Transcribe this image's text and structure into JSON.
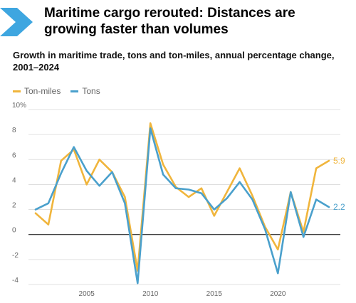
{
  "header": {
    "title": "Maritime cargo rerouted: Distances are growing faster than volumes",
    "subtitle": "Growth in maritime trade, tons and ton-miles, annual percentage change, 2001–2024",
    "chevron_icon": "chevron-right-icon",
    "accent_color": "#3ea6e0"
  },
  "chart_data": {
    "type": "line",
    "x": [
      2001,
      2002,
      2003,
      2004,
      2005,
      2006,
      2007,
      2008,
      2009,
      2010,
      2011,
      2012,
      2013,
      2014,
      2015,
      2016,
      2017,
      2018,
      2019,
      2020,
      2021,
      2022,
      2023,
      2024
    ],
    "series": [
      {
        "name": "Ton-miles",
        "color": "#f0b53c",
        "values": [
          1.7,
          0.8,
          5.9,
          6.8,
          4.0,
          6.0,
          5.0,
          3.0,
          -2.9,
          8.9,
          5.6,
          3.8,
          3.0,
          3.7,
          1.5,
          3.4,
          5.3,
          3.1,
          0.6,
          -1.2,
          3.4,
          0.2,
          5.3,
          5.9
        ]
      },
      {
        "name": "Tons",
        "color": "#4aa0cc",
        "values": [
          2.0,
          2.5,
          4.9,
          7.0,
          5.1,
          3.9,
          5.0,
          2.5,
          -3.9,
          8.5,
          4.8,
          3.7,
          3.6,
          3.3,
          2.0,
          2.9,
          4.2,
          2.8,
          0.4,
          -3.1,
          3.4,
          -0.2,
          2.8,
          2.2
        ]
      }
    ],
    "end_labels": [
      "5.9",
      "2.2"
    ],
    "ylim": [
      -4,
      10
    ],
    "y_ticks": [
      "-4",
      "-2",
      "0",
      "2",
      "4",
      "6",
      "8",
      "10%"
    ],
    "y_tick_values": [
      -4,
      -2,
      0,
      2,
      4,
      6,
      8,
      10
    ],
    "x_ticks": [
      "2005",
      "2010",
      "2015",
      "2020"
    ],
    "x_tick_values": [
      2005,
      2010,
      2015,
      2020
    ],
    "xlim": [
      2001,
      2024
    ],
    "grid": true,
    "legend_position": "top-left"
  }
}
